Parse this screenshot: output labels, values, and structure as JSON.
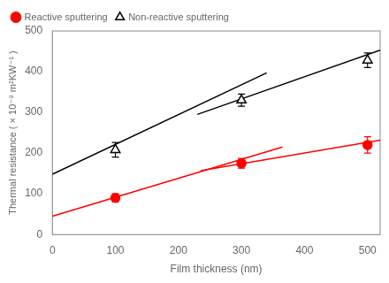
{
  "chart_data": {
    "type": "scatter",
    "xlabel": "Film thickness (nm)",
    "ylabel": "Thermal resistance ( × 10⁻⁹ m²KW⁻¹ )",
    "xlim": [
      0,
      520
    ],
    "ylim": [
      0,
      500
    ],
    "xticks": [
      0,
      100,
      200,
      300,
      400,
      500
    ],
    "yticks": [
      0,
      100,
      200,
      300,
      400,
      500
    ],
    "grid": false,
    "legend": "upper left",
    "series": [
      {
        "type": "line",
        "color": "#000000",
        "line_style": "solid",
        "x": [
          0,
          340
        ],
        "values": [
          148,
          397
        ]
      },
      {
        "type": "line",
        "color": "#000000",
        "line_style": "solid",
        "x": [
          230,
          520
        ],
        "values": [
          295,
          453
        ]
      },
      {
        "type": "line",
        "color": "#ff0000",
        "line_style": "solid",
        "x": [
          0,
          365
        ],
        "values": [
          45,
          215
        ]
      },
      {
        "type": "line",
        "color": "#ff0000",
        "line_style": "solid",
        "x": [
          235,
          520
        ],
        "values": [
          157,
          232
        ]
      },
      {
        "name": "Reactive sputtering",
        "type": "scatter",
        "color": "#ff0000",
        "marker": "circle",
        "x": [
          100,
          300,
          500
        ],
        "values": [
          90,
          175,
          220
        ],
        "yerr": [
          10,
          12,
          20
        ]
      },
      {
        "name": "Non-reactive sputtering",
        "type": "scatter",
        "color": "#000000",
        "marker": "open_triangle",
        "x": [
          100,
          300,
          500
        ],
        "values": [
          208,
          330,
          428
        ],
        "yerr": [
          18,
          15,
          18
        ]
      }
    ]
  }
}
